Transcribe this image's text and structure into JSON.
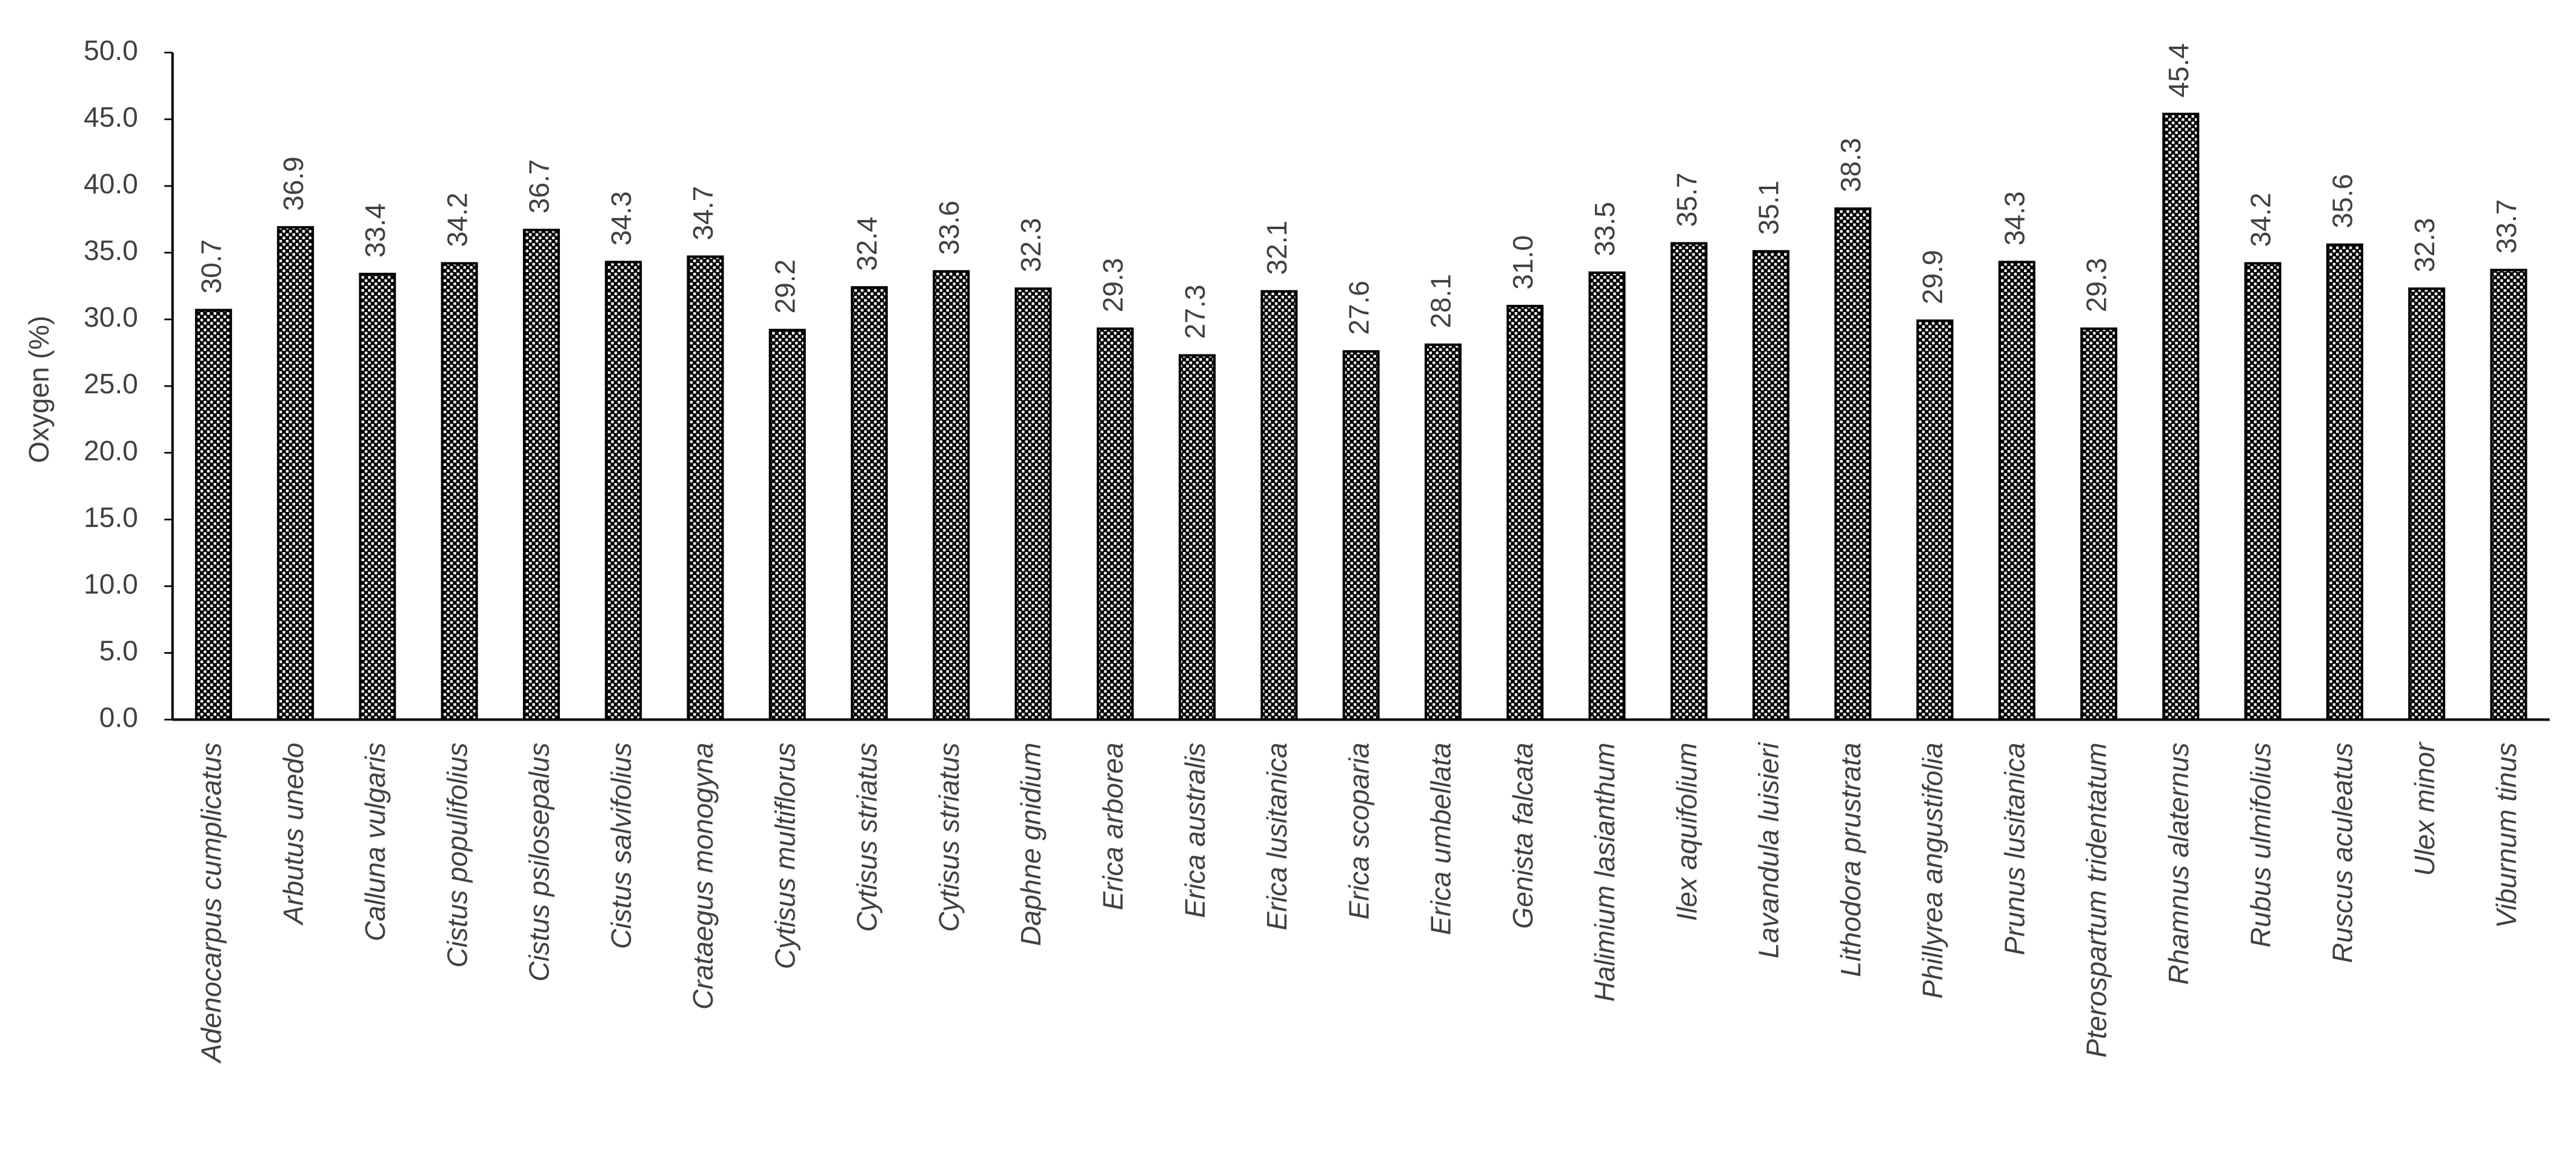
{
  "chart_data": {
    "type": "bar",
    "y_label": "Oxygen (%)",
    "categories": [
      "Adenocarpus cumplicatus",
      "Arbutus unedo",
      "Calluna vulgaris",
      "Cistus populifolius",
      "Cistus psilosepalus",
      "Cistus salvifolius",
      "Crataegus monogyna",
      "Cytisus multiflorus",
      "Cytisus striatus",
      "Cytisus striatus",
      "Daphne gnidium",
      "Erica arborea",
      "Erica australis",
      "Erica lusitanica",
      "Erica scoparia",
      "Erica umbellata",
      "Genista falcata",
      "Halimium lasianthum",
      "Ilex aquifolium",
      "Lavandula luisieri",
      "Lithodora prustrata",
      "Phillyrea angustifolia",
      "Prunus lusitanica",
      "Pterospartum tridentatum",
      "Rhamnus alaternus",
      "Rubus ulmifolius",
      "Ruscus aculeatus",
      "Ulex minor",
      "Viburnum tinus"
    ],
    "values": [
      30.7,
      36.9,
      33.4,
      34.2,
      36.7,
      34.3,
      34.7,
      29.2,
      32.4,
      33.6,
      32.3,
      29.3,
      27.3,
      32.1,
      27.6,
      28.1,
      31.0,
      33.5,
      35.7,
      35.1,
      38.3,
      29.9,
      34.3,
      29.3,
      45.4,
      34.2,
      35.6,
      32.3,
      33.7
    ],
    "value_labels": [
      "30.7",
      "36.9",
      "33.4",
      "34.2",
      "36.7",
      "34.3",
      "34.7",
      "29.2",
      "32.4",
      "33.6",
      "32.3",
      "29.3",
      "27.3",
      "32.1",
      "27.6",
      "28.1",
      "31.0",
      "33.5",
      "35.7",
      "35.1",
      "38.3",
      "29.9",
      "34.3",
      "29.3",
      "45.4",
      "34.2",
      "35.6",
      "32.3",
      "33.7"
    ],
    "color": "#000000",
    "ylim": [
      0,
      50
    ],
    "yticks": [
      {
        "value": 0,
        "label": "0.0"
      },
      {
        "value": 5,
        "label": "5.0"
      },
      {
        "value": 10,
        "label": "10.0"
      },
      {
        "value": 15,
        "label": "15.0"
      },
      {
        "value": 20,
        "label": "20.0"
      },
      {
        "value": 25,
        "label": "25.0"
      },
      {
        "value": 30,
        "label": "30.0"
      },
      {
        "value": 35,
        "label": "35.0"
      },
      {
        "value": 40,
        "label": "40.0"
      },
      {
        "value": 45,
        "label": "45.0"
      },
      {
        "value": 50,
        "label": "50.0"
      }
    ],
    "grid": false
  }
}
